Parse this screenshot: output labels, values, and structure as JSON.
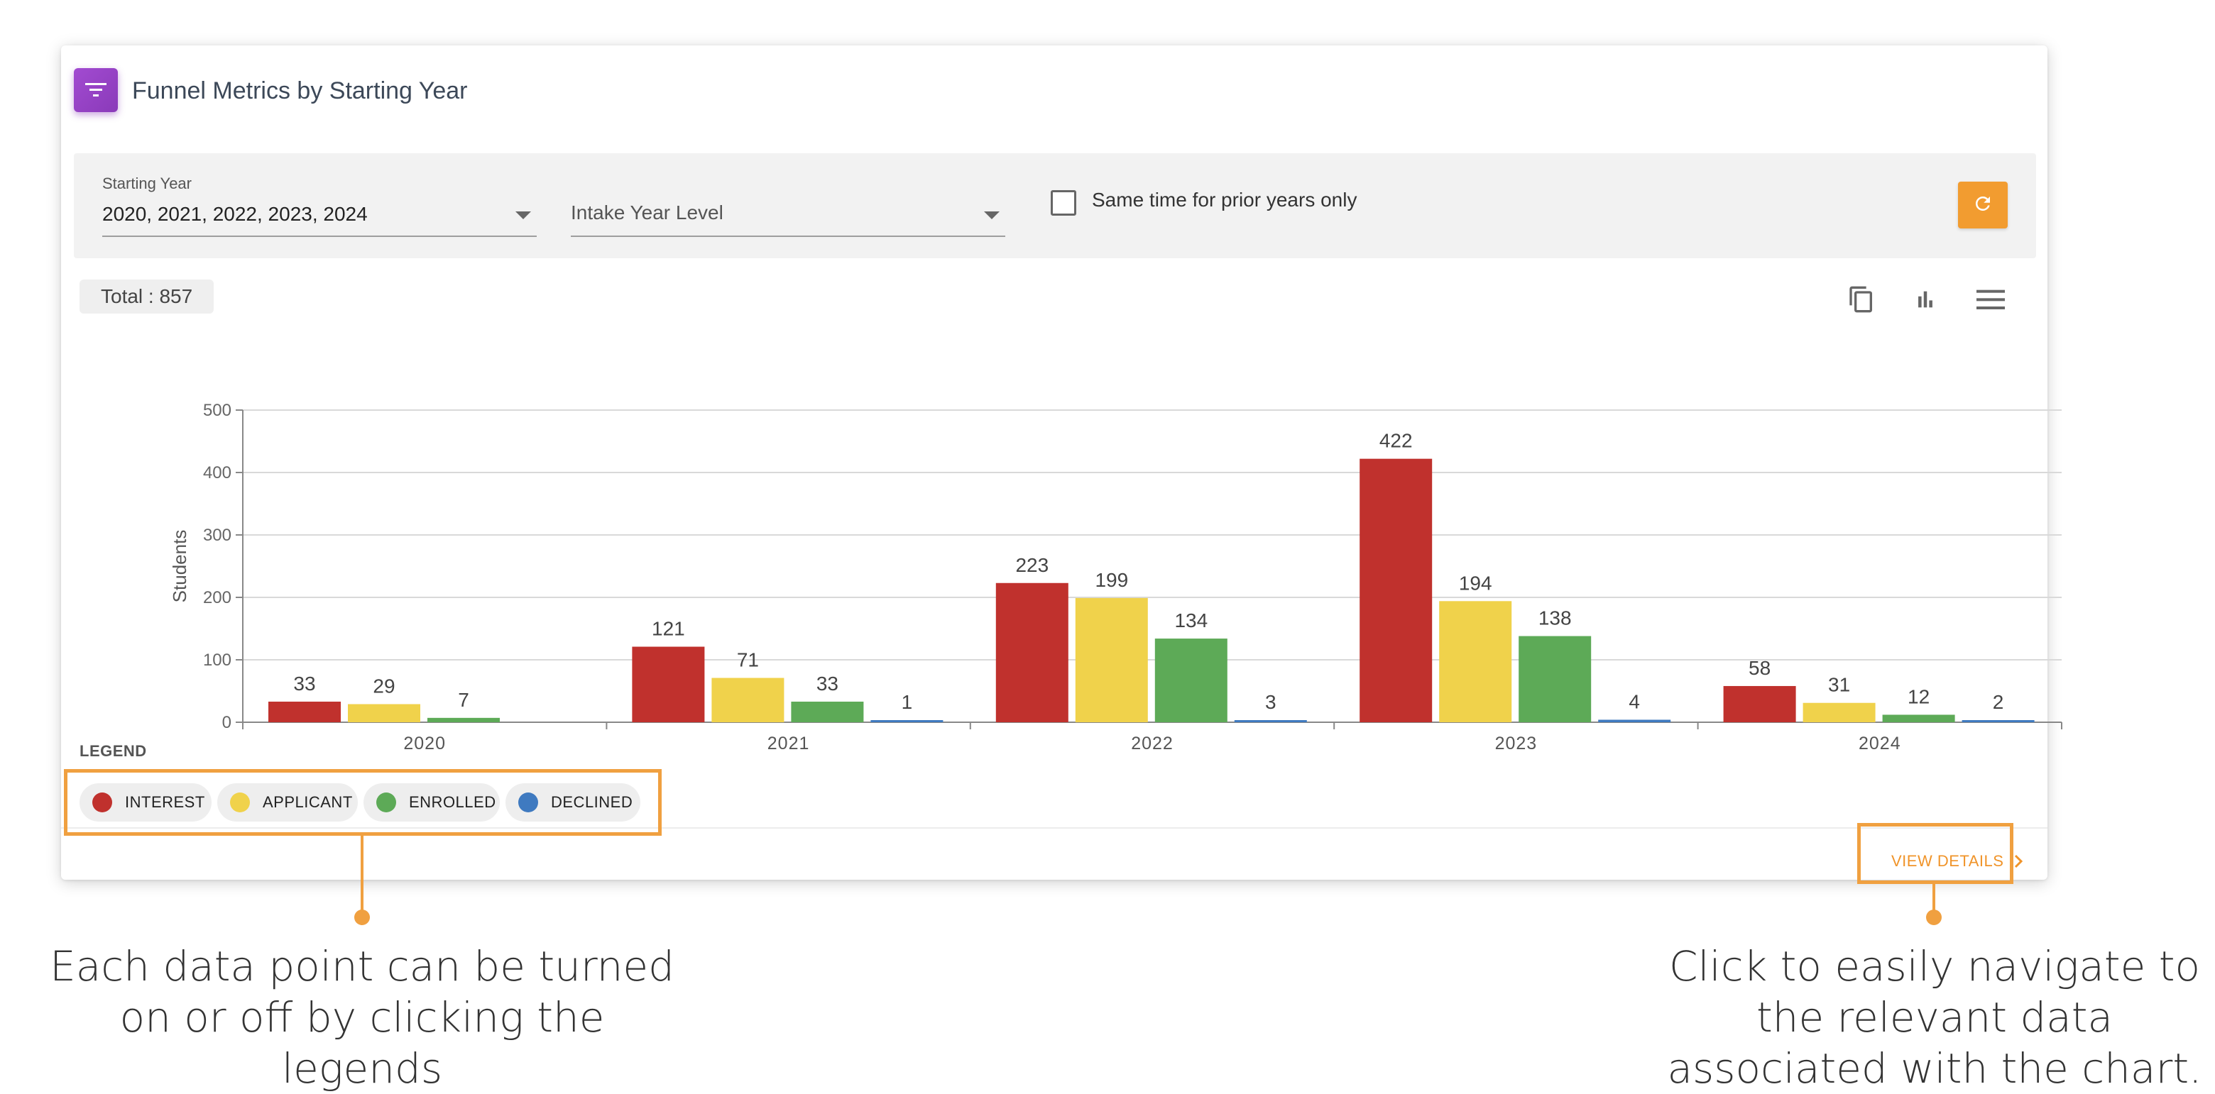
{
  "card": {
    "title": "Funnel Metrics by Starting Year",
    "icon": "filter-list-icon"
  },
  "filters": {
    "starting_year": {
      "label": "Starting Year",
      "value": "2020, 2021, 2022, 2023, 2024"
    },
    "intake_year_level": {
      "placeholder": "Intake Year Level"
    },
    "same_time_checkbox": {
      "label": "Same time for prior years only",
      "checked": false
    },
    "refresh_icon": "refresh-icon",
    "accent_color": "#f29c30"
  },
  "summary": {
    "total": "Total : 857"
  },
  "toolbar": {
    "icons": [
      "copy-icon",
      "bar-chart-icon",
      "menu-icon"
    ]
  },
  "chart_data": {
    "type": "bar",
    "categories": [
      "2020",
      "2021",
      "2022",
      "2023",
      "2024"
    ],
    "series": [
      {
        "name": "INTEREST",
        "color": "#c0312d",
        "values": [
          33,
          121,
          223,
          422,
          58
        ]
      },
      {
        "name": "APPLICANT",
        "color": "#f0d24b",
        "values": [
          29,
          71,
          199,
          194,
          31
        ]
      },
      {
        "name": "ENROLLED",
        "color": "#5daa57",
        "values": [
          7,
          33,
          134,
          138,
          12
        ]
      },
      {
        "name": "DECLINED",
        "color": "#3f7ac0",
        "values": [
          0,
          1,
          3,
          4,
          2
        ]
      }
    ],
    "data_labels": [
      [
        "33",
        "29",
        "7",
        ""
      ],
      [
        "121",
        "71",
        "33",
        "1"
      ],
      [
        "223",
        "199",
        "134",
        "3"
      ],
      [
        "422",
        "194",
        "138",
        "4"
      ],
      [
        "58",
        "31",
        "12",
        "2"
      ]
    ],
    "ylabel": "Students",
    "xlabel": "",
    "ylim": [
      0,
      500
    ],
    "yticks": [
      "0",
      "100",
      "200",
      "300",
      "400",
      "500"
    ],
    "grid": true
  },
  "legend": {
    "title": "LEGEND",
    "items": [
      {
        "label": "INTEREST",
        "color": "#c0312d"
      },
      {
        "label": "APPLICANT",
        "color": "#f0d24b"
      },
      {
        "label": "ENROLLED",
        "color": "#5daa57"
      },
      {
        "label": "DECLINED",
        "color": "#3f7ac0"
      }
    ]
  },
  "footer": {
    "view_details": "VIEW DETAILS",
    "chevron_icon": "chevron-right-icon"
  },
  "annotations": {
    "legend_note": "Each data point can be turned on or off by clicking the legends",
    "details_note": "Click to easily navigate to the relevant data associated with the chart.",
    "highlight_color": "#f0a040"
  }
}
